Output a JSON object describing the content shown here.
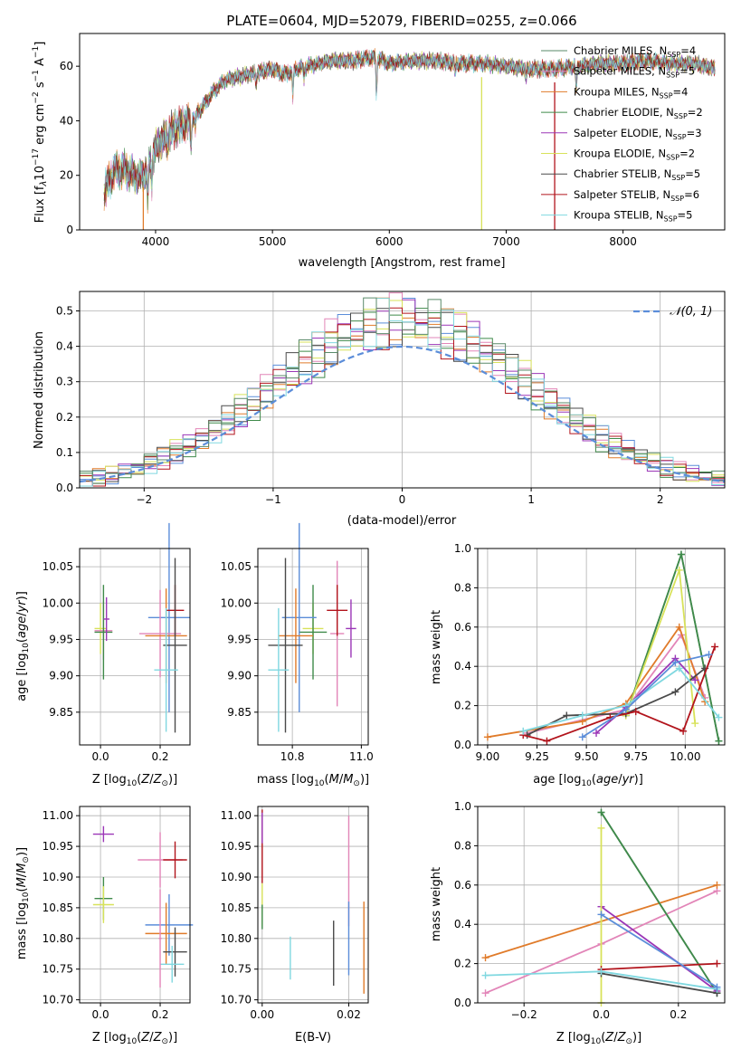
{
  "figure_title": "PLATE=0604, MJD=52079, FIBERID=0255, z=0.066",
  "models": [
    {
      "name": "Chabrier MILES, N",
      "n": "4",
      "color": "#5a8a6a"
    },
    {
      "name": "Salpeter MILES, N",
      "n": "5",
      "color": "#e285b8"
    },
    {
      "name": "Kroupa MILES, N",
      "n": "4",
      "color": "#e07b2a"
    },
    {
      "name": "Chabrier ELODIE, N",
      "n": "2",
      "color": "#3f8a4a"
    },
    {
      "name": "Salpeter ELODIE, N",
      "n": "3",
      "color": "#9b36b7"
    },
    {
      "name": "Kroupa ELODIE, N",
      "n": "2",
      "color": "#d8e25a"
    },
    {
      "name": "Chabrier STELIB, N",
      "n": "5",
      "color": "#4a4a4a"
    },
    {
      "name": "Salpeter STELIB, N",
      "n": "6",
      "color": "#b2141c"
    },
    {
      "name": "Kroupa STELIB, N",
      "n": "5",
      "color": "#80d8e0"
    }
  ],
  "legend_sub": "SSP",
  "chart_data": [
    {
      "id": "spectrum",
      "type": "line",
      "xlabel": "wavelength [Angstrom, rest frame]",
      "ylabel": "Flux [f",
      "ylabel_parts": [
        "Flux [f",
        "λ",
        "10",
        "−17",
        " erg cm",
        "−2",
        " s",
        "−1",
        " A",
        "−1",
        "]"
      ],
      "xlim": [
        3350,
        8870
      ],
      "ylim": [
        0,
        72
      ],
      "xticks": [
        4000,
        5000,
        6000,
        7000,
        8000
      ],
      "yticks": [
        0,
        20,
        40,
        60
      ],
      "grid": false,
      "legend_position": "top-right",
      "continuum_knots": {
        "wavelength": [
          3560,
          3650,
          3750,
          3850,
          3930,
          4000,
          4100,
          4200,
          4300,
          4400,
          4500,
          4600,
          4700,
          4800,
          4900,
          5000,
          5100,
          5200,
          5300,
          5400,
          5500,
          5600,
          5700,
          5800,
          5900,
          6000,
          6200,
          6400,
          6600,
          6800,
          7000,
          7200,
          7400,
          7600,
          7800,
          8000,
          8200,
          8400,
          8600,
          8800
        ],
        "flux": [
          14,
          22,
          22,
          19,
          22,
          30,
          35,
          38,
          40,
          45,
          51,
          55,
          56,
          57,
          58,
          59,
          57,
          59,
          60,
          61,
          62,
          62,
          62,
          63,
          63,
          61,
          62,
          62,
          61,
          61,
          60,
          59,
          59,
          60,
          61,
          61,
          62,
          61,
          61,
          59
        ]
      },
      "absorption_lines": [
        {
          "x": 3933,
          "depth": 12
        },
        {
          "x": 3968,
          "depth": 10
        },
        {
          "x": 4102,
          "depth": 5
        },
        {
          "x": 4304,
          "depth": 10
        },
        {
          "x": 4340,
          "depth": 5
        },
        {
          "x": 4861,
          "depth": 4
        },
        {
          "x": 5175,
          "depth": 10
        },
        {
          "x": 5270,
          "depth": 4
        },
        {
          "x": 5890,
          "depth": 14
        },
        {
          "x": 6563,
          "depth": 4
        },
        {
          "x": 7170,
          "depth": 4
        },
        {
          "x": 7600,
          "depth": 10
        }
      ],
      "spikes_to_zero": [
        {
          "x": 3895,
          "color": "#e07b2a"
        },
        {
          "x": 6790,
          "color": "#d8e25a"
        },
        {
          "x": 7415,
          "color": "#b2141c"
        }
      ]
    },
    {
      "id": "residuals",
      "type": "step",
      "xlabel": "(data-model)/error",
      "ylabel": "Normed distribution",
      "xlim": [
        -2.5,
        2.5
      ],
      "ylim": [
        0,
        0.555
      ],
      "xticks": [
        -2,
        -1,
        0,
        1,
        2
      ],
      "yticks": [
        0.0,
        0.1,
        0.2,
        0.3,
        0.4,
        0.5
      ],
      "grid": true,
      "legend_position": "top-right",
      "normal_curve": {
        "label": "𝒩(0, 1)",
        "mu": 0,
        "sigma": 1,
        "color": "#5b8dd9"
      },
      "bin_width": 0.1
    },
    {
      "id": "age-vs-Z",
      "type": "errorbar",
      "xlabel": "Z [log",
      "ylabel": "age  [log",
      "xlim": [
        -0.07,
        0.3
      ],
      "ylim": [
        9.805,
        10.075
      ],
      "xticks": [
        0.0,
        0.2
      ],
      "yticks": [
        9.85,
        9.9,
        9.95,
        10.0,
        10.05
      ],
      "points": [
        {
          "x": 0.0,
          "xerr": 0.02,
          "y": 9.965,
          "yerr": 0.035,
          "color": "#d8e25a"
        },
        {
          "x": 0.01,
          "xerr": 0.03,
          "y": 9.962,
          "yerr": 0.04,
          "color": "#e285b8"
        },
        {
          "x": 0.01,
          "xerr": 0.03,
          "y": 9.96,
          "yerr": 0.065,
          "color": "#3f8a4a"
        },
        {
          "x": 0.02,
          "xerr": 0.01,
          "y": 9.978,
          "yerr": 0.03,
          "color": "#9b36b7"
        },
        {
          "x": 0.23,
          "xerr": 0.07,
          "y": 9.98,
          "yerr": 0.13,
          "color": "#5b8dd9"
        },
        {
          "x": 0.2,
          "xerr": 0.07,
          "y": 9.958,
          "yerr": 0.06,
          "color": "#e285b8"
        },
        {
          "x": 0.22,
          "xerr": 0.07,
          "y": 9.955,
          "yerr": 0.065,
          "color": "#e07b2a"
        },
        {
          "x": 0.25,
          "xerr": 0.03,
          "y": 9.99,
          "yerr": 0.035,
          "color": "#b2141c"
        },
        {
          "x": 0.25,
          "xerr": 0.04,
          "y": 9.942,
          "yerr": 0.12,
          "color": "#4a4a4a"
        },
        {
          "x": 0.22,
          "xerr": 0.04,
          "y": 9.908,
          "yerr": 0.085,
          "color": "#80d8e0"
        }
      ]
    },
    {
      "id": "age-vs-mass",
      "type": "errorbar",
      "xlabel": "mass [log",
      "ylabel": "",
      "xlim": [
        10.7,
        11.02
      ],
      "ylim": [
        9.805,
        10.075
      ],
      "xticks": [
        10.8,
        11.0
      ],
      "yticks": [
        9.85,
        9.9,
        9.95,
        10.0,
        10.05
      ],
      "points": [
        {
          "x": 10.86,
          "xerr": 0.03,
          "y": 9.965,
          "yerr": 0.035,
          "color": "#d8e25a"
        },
        {
          "x": 10.86,
          "xerr": 0.04,
          "y": 9.96,
          "yerr": 0.065,
          "color": "#3f8a4a"
        },
        {
          "x": 10.97,
          "xerr": 0.015,
          "y": 9.965,
          "yerr": 0.04,
          "color": "#9b36b7"
        },
        {
          "x": 10.82,
          "xerr": 0.05,
          "y": 9.98,
          "yerr": 0.13,
          "color": "#5b8dd9"
        },
        {
          "x": 10.93,
          "xerr": 0.02,
          "y": 9.958,
          "yerr": 0.1,
          "color": "#e285b8"
        },
        {
          "x": 10.81,
          "xerr": 0.05,
          "y": 9.955,
          "yerr": 0.065,
          "color": "#e07b2a"
        },
        {
          "x": 10.93,
          "xerr": 0.03,
          "y": 9.99,
          "yerr": 0.035,
          "color": "#b2141c"
        },
        {
          "x": 10.78,
          "xerr": 0.05,
          "y": 9.942,
          "yerr": 0.12,
          "color": "#4a4a4a"
        },
        {
          "x": 10.76,
          "xerr": 0.03,
          "y": 9.908,
          "yerr": 0.085,
          "color": "#80d8e0"
        }
      ]
    },
    {
      "id": "mass-weight-vs-age",
      "type": "line",
      "xlabel": "age  [log",
      "ylabel": "mass weight",
      "xlim": [
        8.95,
        10.2
      ],
      "ylim": [
        0,
        1.0
      ],
      "xticks": [
        9.0,
        9.25,
        9.5,
        9.75,
        10.0
      ],
      "yticks": [
        0.0,
        0.2,
        0.4,
        0.6,
        0.8,
        1.0
      ],
      "grid": true,
      "series": [
        {
          "color": "#5a8a6a",
          "x": [
            9.7,
            9.98,
            10.17
          ],
          "y": [
            0.15,
            0.97,
            0.02
          ]
        },
        {
          "color": "#e285b8",
          "x": [
            9.2,
            9.7,
            9.98,
            10.1
          ],
          "y": [
            0.06,
            0.18,
            0.56,
            0.24
          ]
        },
        {
          "color": "#e07b2a",
          "x": [
            9.0,
            9.48,
            9.7,
            9.97,
            10.1
          ],
          "y": [
            0.04,
            0.12,
            0.21,
            0.6,
            0.22
          ]
        },
        {
          "color": "#3f8a4a",
          "x": [
            9.7,
            9.98,
            10.17
          ],
          "y": [
            0.15,
            0.97,
            0.02
          ]
        },
        {
          "color": "#9b36b7",
          "x": [
            9.55,
            9.7,
            9.95,
            10.05
          ],
          "y": [
            0.06,
            0.19,
            0.44,
            0.33
          ]
        },
        {
          "color": "#d8e25a",
          "x": [
            9.7,
            9.97,
            10.05
          ],
          "y": [
            0.15,
            0.89,
            0.11
          ]
        },
        {
          "color": "#4a4a4a",
          "x": [
            9.2,
            9.4,
            9.7,
            9.95,
            10.1
          ],
          "y": [
            0.05,
            0.15,
            0.16,
            0.27,
            0.39
          ]
        },
        {
          "color": "#b2141c",
          "x": [
            9.18,
            9.3,
            9.62,
            9.75,
            9.99,
            10.15
          ],
          "y": [
            0.05,
            0.02,
            0.14,
            0.17,
            0.07,
            0.5
          ]
        },
        {
          "color": "#80d8e0",
          "x": [
            9.18,
            9.48,
            9.7,
            9.97,
            10.17
          ],
          "y": [
            0.07,
            0.15,
            0.2,
            0.39,
            0.14
          ]
        },
        {
          "color": "#5b8dd9",
          "x": [
            9.48,
            9.7,
            9.95,
            10.12
          ],
          "y": [
            0.04,
            0.18,
            0.42,
            0.46
          ]
        }
      ]
    },
    {
      "id": "mass-vs-Z",
      "type": "errorbar",
      "xlabel": "Z [log",
      "ylabel": "mass [log",
      "xlim": [
        -0.07,
        0.3
      ],
      "ylim": [
        10.695,
        11.015
      ],
      "xticks": [
        0.0,
        0.2
      ],
      "yticks": [
        10.7,
        10.75,
        10.8,
        10.85,
        10.9,
        10.95,
        11.0
      ],
      "points": [
        {
          "x": 0.01,
          "xerr": 0.035,
          "y": 10.97,
          "yerr": 0.013,
          "color": "#9b36b7"
        },
        {
          "x": 0.01,
          "xerr": 0.03,
          "y": 10.865,
          "yerr": 0.035,
          "color": "#3f8a4a"
        },
        {
          "x": 0.01,
          "xerr": 0.035,
          "y": 10.855,
          "yerr": 0.03,
          "color": "#d8e25a"
        },
        {
          "x": 0.2,
          "xerr": 0.075,
          "y": 10.928,
          "yerr": 0.045,
          "color": "#e285b8"
        },
        {
          "x": 0.25,
          "xerr": 0.04,
          "y": 10.928,
          "yerr": 0.03,
          "color": "#b2141c"
        },
        {
          "x": 0.23,
          "xerr": 0.08,
          "y": 10.822,
          "yerr": 0.05,
          "color": "#5b8dd9"
        },
        {
          "x": 0.22,
          "xerr": 0.07,
          "y": 10.808,
          "yerr": 0.05,
          "color": "#e07b2a"
        },
        {
          "x": 0.25,
          "xerr": 0.04,
          "y": 10.778,
          "yerr": 0.04,
          "color": "#4a4a4a"
        },
        {
          "x": 0.24,
          "xerr": 0.04,
          "y": 10.758,
          "yerr": 0.03,
          "color": "#80d8e0"
        },
        {
          "x": 0.2,
          "xerr": 0.005,
          "y": 10.8,
          "yerr": 0.08,
          "color": "#e285b8"
        }
      ]
    },
    {
      "id": "mass-vs-ebv",
      "type": "errorbar",
      "xlabel": "E(B-V)",
      "ylabel": "",
      "xlim": [
        -0.001,
        0.0245
      ],
      "ylim": [
        10.695,
        11.015
      ],
      "xticks": [
        0.0,
        0.02
      ],
      "yticks": [
        10.7,
        10.75,
        10.8,
        10.85,
        10.9,
        10.95,
        11.0
      ],
      "points": [
        {
          "x": 0.0,
          "xerr": 0,
          "y": 10.95,
          "yerr": 0.06,
          "color": "#b2141c"
        },
        {
          "x": 0.0,
          "xerr": 0,
          "y": 10.98,
          "yerr": 0.025,
          "color": "#9b36b7"
        },
        {
          "x": 0.0,
          "xerr": 0,
          "y": 10.855,
          "yerr": 0.035,
          "color": "#d8e25a"
        },
        {
          "x": 0.0,
          "xerr": 0,
          "y": 10.835,
          "yerr": 0.02,
          "color": "#3f8a4a"
        },
        {
          "x": 0.0065,
          "xerr": 0,
          "y": 10.768,
          "yerr": 0.035,
          "color": "#80d8e0"
        },
        {
          "x": 0.0165,
          "xerr": 0,
          "y": 10.776,
          "yerr": 0.053,
          "color": "#4a4a4a"
        },
        {
          "x": 0.02,
          "xerr": 0,
          "y": 10.91,
          "yerr": 0.09,
          "color": "#e285b8"
        },
        {
          "x": 0.02,
          "xerr": 0,
          "y": 10.8,
          "yerr": 0.06,
          "color": "#5b8dd9"
        },
        {
          "x": 0.0235,
          "xerr": 0,
          "y": 10.785,
          "yerr": 0.075,
          "color": "#e07b2a"
        }
      ]
    },
    {
      "id": "mass-weight-vs-Z",
      "type": "line",
      "xlabel": "Z [log",
      "ylabel": "mass weight",
      "xlim": [
        -0.32,
        0.32
      ],
      "ylim": [
        0,
        1.0
      ],
      "xticks": [
        -0.2,
        0.0,
        0.2
      ],
      "yticks": [
        0.0,
        0.2,
        0.4,
        0.6,
        0.8,
        1.0
      ],
      "grid": true,
      "series": [
        {
          "color": "#5a8a6a",
          "x": [
            0.0,
            0.3
          ],
          "y": [
            0.97,
            0.05
          ]
        },
        {
          "color": "#e285b8",
          "x": [
            -0.3,
            0.0,
            0.3
          ],
          "y": [
            0.05,
            0.3,
            0.57
          ]
        },
        {
          "color": "#e07b2a",
          "x": [
            -0.3,
            0.3
          ],
          "y": [
            0.23,
            0.6
          ]
        },
        {
          "color": "#3f8a4a",
          "x": [
            0.0,
            0.3
          ],
          "y": [
            0.97,
            0.05
          ]
        },
        {
          "color": "#9b36b7",
          "x": [
            0.0,
            0.3
          ],
          "y": [
            0.49,
            0.06
          ]
        },
        {
          "color": "#d8e25a",
          "x": [
            0.0,
            0.0
          ],
          "y": [
            0.0,
            0.89
          ]
        },
        {
          "color": "#4a4a4a",
          "x": [
            0.0,
            0.3
          ],
          "y": [
            0.15,
            0.05
          ]
        },
        {
          "color": "#b2141c",
          "x": [
            0.0,
            0.3
          ],
          "y": [
            0.17,
            0.2
          ]
        },
        {
          "color": "#80d8e0",
          "x": [
            -0.3,
            0.0,
            0.3
          ],
          "y": [
            0.14,
            0.16,
            0.07
          ]
        },
        {
          "color": "#5b8dd9",
          "x": [
            0.0,
            0.3
          ],
          "y": [
            0.45,
            0.08
          ]
        }
      ]
    }
  ]
}
